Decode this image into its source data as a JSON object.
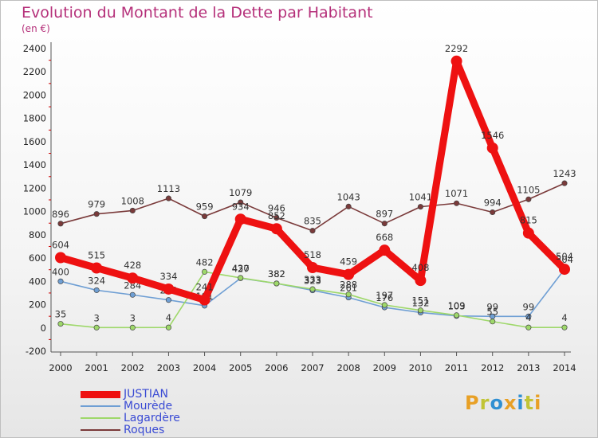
{
  "header": {
    "title": "Evolution du Montant de la Dette par Habitant",
    "subtitle": "(en €)"
  },
  "logo": {
    "text": "Proxiti",
    "colors": [
      "#e8a025",
      "#c1c435",
      "#2f8fd2",
      "#e8a025",
      "#2f8fd2",
      "#c1c435",
      "#e8a025"
    ]
  },
  "chart_data": {
    "type": "line",
    "title": "Evolution du Montant de la Dette par Habitant",
    "subtitle": "(en €)",
    "xlabel": "",
    "ylabel": "",
    "x": [
      "2000",
      "2001",
      "2002",
      "2003",
      "2004",
      "2005",
      "2006",
      "2007",
      "2008",
      "2009",
      "2010",
      "2011",
      "2012",
      "2013",
      "2014"
    ],
    "ylim": [
      -200,
      2400
    ],
    "yticks": [
      "-200",
      "0",
      "200",
      "400",
      "600",
      "800",
      "1000",
      "1200",
      "1400",
      "1600",
      "1800",
      "2000",
      "2200",
      "2400"
    ],
    "grid": false,
    "legend_position": "bottom-left",
    "series": [
      {
        "name": "JUSTIAN",
        "color": "#ee1111",
        "emphasis": true,
        "values": [
          604,
          515,
          428,
          334,
          241,
          934,
          852,
          518,
          459,
          668,
          408,
          2292,
          1546,
          815,
          504
        ]
      },
      {
        "name": "Mourède",
        "color": "#6f9fd4",
        "values": [
          400,
          324,
          284,
          240,
          191,
          427,
          382,
          323,
          261,
          176,
          132,
          103,
          99,
          99,
          504
        ]
      },
      {
        "name": "Lagardère",
        "color": "#9ed86a",
        "values": [
          35,
          3,
          3,
          4,
          482,
          430,
          382,
          333,
          288,
          197,
          151,
          109,
          55,
          4,
          4
        ]
      },
      {
        "name": "Roques",
        "color": "#7a3a3a",
        "values": [
          896,
          979,
          1008,
          1113,
          959,
          1079,
          946,
          835,
          1043,
          897,
          1041,
          1071,
          994,
          1105,
          1243
        ]
      }
    ]
  }
}
